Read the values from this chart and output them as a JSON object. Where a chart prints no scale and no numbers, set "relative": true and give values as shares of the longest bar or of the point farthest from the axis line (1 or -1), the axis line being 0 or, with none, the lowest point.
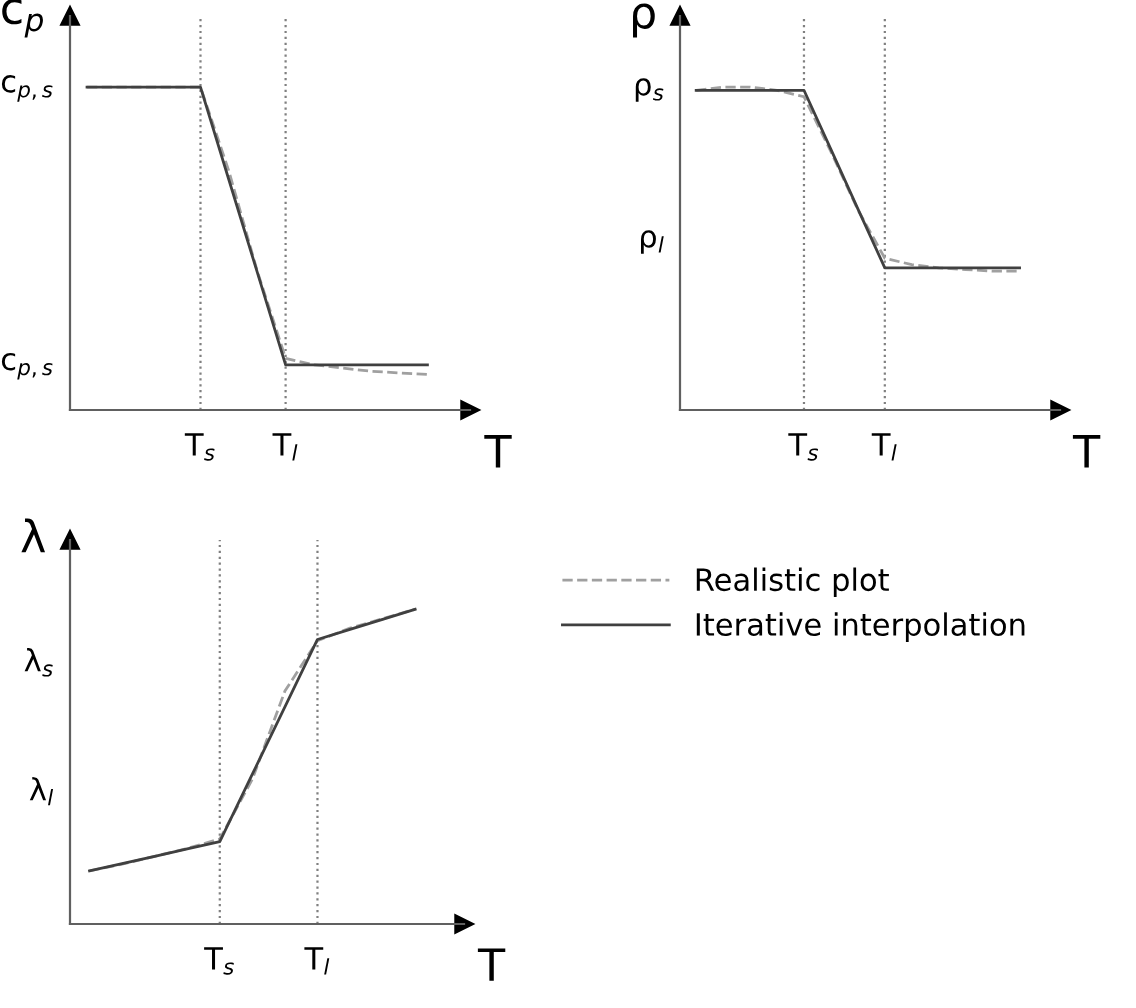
{
  "chart_data": [
    {
      "type": "line",
      "relative": true,
      "xlabel": "T",
      "ylabel": "c$_{p}$",
      "grid": "x",
      "categories": [
        null,
        null,
        null,
        null,
        "T$_{s}$",
        null,
        null,
        "T$_{l}$",
        null,
        null,
        null,
        null,
        null
      ],
      "annotations": [
        "c$_{p,s}$",
        "c$_{p,s}$"
      ],
      "series": [
        {
          "color": "#a0a0a0",
          "line_style": "dashed",
          "values": [
            1,
            1,
            1,
            1,
            1,
            0.74,
            0.43,
            0.16,
            0.14,
            0.13,
            0.12,
            0.115,
            0.11
          ]
        },
        {
          "color": "#404040",
          "line_style": "solid",
          "values": [
            1,
            1,
            1,
            1,
            1,
            0.713,
            0.427,
            0.14,
            0.14,
            0.14,
            0.14,
            0.14,
            0.14
          ]
        }
      ]
    },
    {
      "type": "line",
      "relative": true,
      "xlabel": "T",
      "ylabel": "ρ",
      "grid": "x",
      "categories": [
        null,
        null,
        null,
        null,
        "T$_{s}$",
        null,
        null,
        "T$_{l}$",
        null,
        null,
        null,
        null,
        null
      ],
      "annotations": [
        "ρ$_{s}$",
        "ρ$_{l}$"
      ],
      "series": [
        {
          "color": "#a0a0a0",
          "line_style": "dashed",
          "values": [
            0.99,
            1,
            1,
            0.99,
            0.97,
            0.8,
            0.62,
            0.47,
            0.45,
            0.44,
            0.435,
            0.43,
            0.43
          ]
        },
        {
          "color": "#404040",
          "line_style": "solid",
          "values": [
            0.99,
            0.99,
            0.99,
            0.99,
            0.99,
            0.807,
            0.623,
            0.44,
            0.44,
            0.44,
            0.44,
            0.44,
            0.44
          ]
        }
      ]
    },
    {
      "type": "line",
      "relative": true,
      "xlabel": "T",
      "ylabel": "λ",
      "grid": "x",
      "legend": "right",
      "categories": [
        null,
        null,
        null,
        null,
        "T$_{s}$",
        null,
        null,
        "T$_{l}$",
        null,
        null,
        null
      ],
      "annotations": [
        "λ$_{s}$",
        "λ$_{l}$"
      ],
      "series": [
        {
          "name": "Realistic plot",
          "color": "#a0a0a0",
          "line_style": "dashed",
          "values": [
            0.169,
            0.19,
            0.215,
            0.24,
            0.27,
            0.46,
            0.74,
            0.9,
            0.94,
            0.97,
            1
          ]
        },
        {
          "name": "Iterative interpolation",
          "color": "#404040",
          "line_style": "solid",
          "values": [
            0.169,
            0.192,
            0.215,
            0.239,
            0.262,
            0.476,
            0.69,
            0.904,
            0.936,
            0.968,
            1
          ]
        }
      ]
    }
  ]
}
